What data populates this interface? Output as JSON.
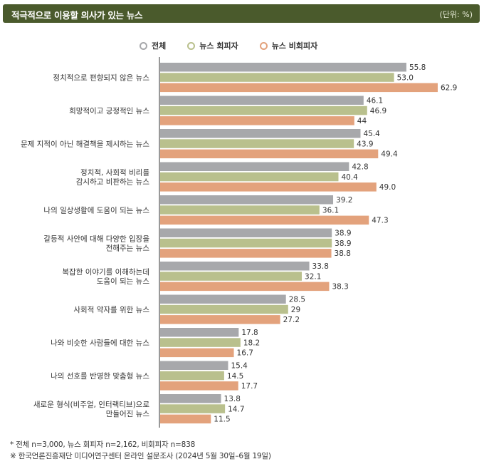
{
  "header": {
    "title": "적극적으로 이용할 의사가 있는 뉴스",
    "unit": "(단위: %)"
  },
  "colors": {
    "header_bg": "#4a5a2c",
    "all": "#a7a8ab",
    "avoiders": "#b9c08d",
    "non_avoiders": "#e3a27c"
  },
  "chart_data": {
    "type": "bar",
    "orientation": "horizontal",
    "categories": [
      [
        "정치적으로 편향되지 않은 뉴스"
      ],
      [
        "희망적이고 긍정적인 뉴스"
      ],
      [
        "문제 지적이 아닌 해결책을 제시하는 뉴스"
      ],
      [
        "정치적, 사회적 비리를",
        "감시하고 비판하는 뉴스"
      ],
      [
        "나의 일상생활에 도움이 되는 뉴스"
      ],
      [
        "갈등적 사안에 대해 다양한 입장을",
        "전해주는 뉴스"
      ],
      [
        "복잡한 이야기를 이해하는데",
        "도움이 되는 뉴스"
      ],
      [
        "사회적 약자를 위한 뉴스"
      ],
      [
        "나와 비슷한 사람들에 대한 뉴스"
      ],
      [
        "나의 선호를 반영한 맞춤형 뉴스"
      ],
      [
        "새로운 형식(비주얼, 인터랙티브)으로",
        "만들어진 뉴스"
      ]
    ],
    "series": [
      {
        "name": "전체",
        "color": "#a7a8ab",
        "values": [
          55.8,
          46.1,
          45.4,
          42.8,
          39.2,
          38.9,
          33.8,
          28.5,
          17.8,
          15.4,
          13.8
        ],
        "labels": [
          "55.8",
          "46.1",
          "45.4",
          "42.8",
          "39.2",
          "38.9",
          "33.8",
          "28.5",
          "17.8",
          "15.4",
          "13.8"
        ]
      },
      {
        "name": "뉴스 회피자",
        "color": "#b9c08d",
        "values": [
          53.0,
          46.9,
          43.9,
          40.4,
          36.1,
          38.9,
          32.1,
          29,
          18.2,
          14.5,
          14.7
        ],
        "labels": [
          "53.0",
          "46.9",
          "43.9",
          "40.4",
          "36.1",
          "38.9",
          "32.1",
          "29",
          "18.2",
          "14.5",
          "14.7"
        ]
      },
      {
        "name": "뉴스 비회피자",
        "color": "#e3a27c",
        "values": [
          62.9,
          44,
          49.4,
          49.0,
          47.3,
          38.8,
          38.3,
          27.2,
          16.7,
          17.7,
          11.5
        ],
        "labels": [
          "62.9",
          "44",
          "49.4",
          "49.0",
          "47.3",
          "38.8",
          "38.3",
          "27.2",
          "16.7",
          "17.7",
          "11.5"
        ]
      }
    ],
    "grid": false,
    "legend_position": "top"
  },
  "footnotes": [
    "* 전체 n=3,000, 뉴스 회피자 n=2,162, 비회피자 n=838",
    "※ 한국언론진흥재단 미디어연구센터 온라인 설문조사 (2024년 5월 30일–6월 19일)"
  ]
}
